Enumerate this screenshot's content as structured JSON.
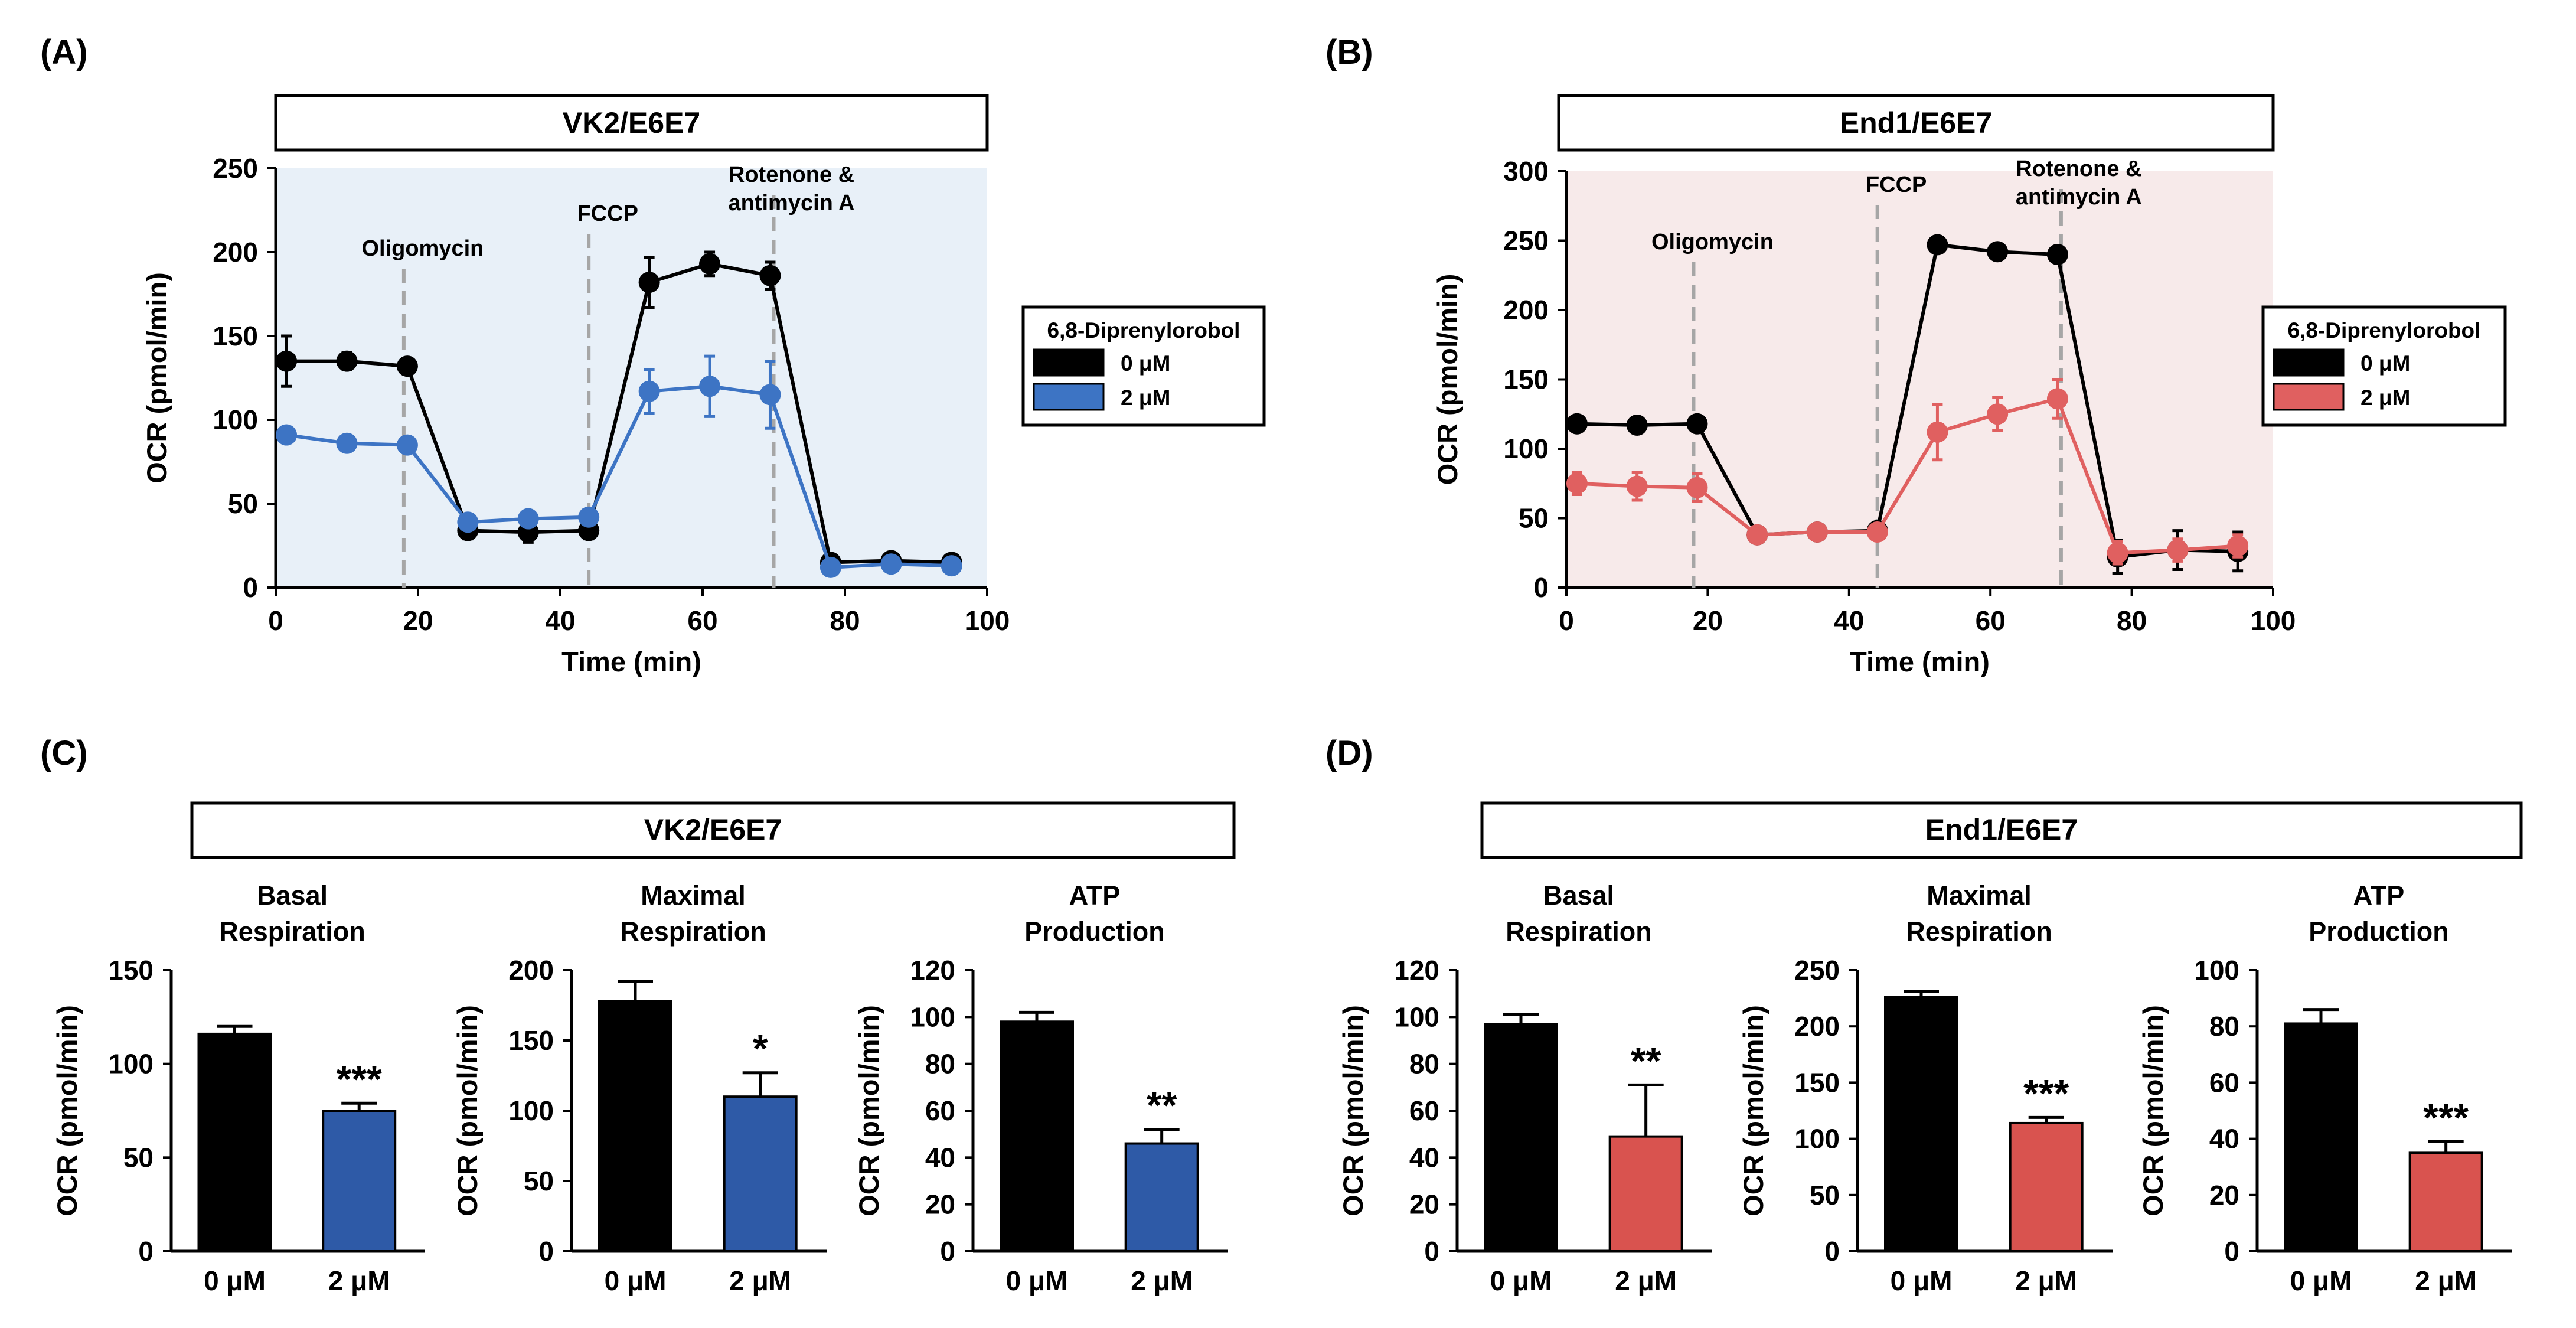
{
  "panels": {
    "A": {
      "label": "(A)"
    },
    "B": {
      "label": "(B)"
    },
    "C": {
      "label": "(C)"
    },
    "D": {
      "label": "(D)"
    }
  },
  "colors": {
    "ctrl": "#000000",
    "blue": "#3d74c4",
    "blueBar": "#2e5aa7",
    "red": "#e06060",
    "redBar": "#d9534f",
    "bgA": "#e8f0f8",
    "bgB": "#f7eaea",
    "vline": "#a6a6a6"
  },
  "chart_data": [
    {
      "id": "A",
      "type": "line",
      "title": "VK2/E6E7",
      "xlabel": "Time (min)",
      "ylabel": "OCR (pmol/min)",
      "xlim": [
        0,
        100
      ],
      "ylim": [
        0,
        250
      ],
      "xticks": [
        0,
        20,
        40,
        60,
        80,
        100
      ],
      "yticks": [
        0,
        50,
        100,
        150,
        200,
        250
      ],
      "legend_title": "6,8-Diprenylorobol",
      "annotations": [
        {
          "text": "Oligomycin",
          "x": 18
        },
        {
          "text": "FCCP",
          "x": 44
        },
        {
          "text": "Rotenone &",
          "text2": "antimycin A",
          "x": 70
        }
      ],
      "x": [
        1.5,
        10,
        18.5,
        27,
        35.5,
        44,
        52.5,
        61,
        69.5,
        78,
        86.5,
        95
      ],
      "series": [
        {
          "name": "0 μM",
          "color": "#000000",
          "values": [
            135,
            135,
            132,
            34,
            33,
            34,
            182,
            193,
            186,
            15,
            16,
            15
          ],
          "errors": [
            15,
            5,
            4,
            5,
            6,
            5,
            15,
            7,
            8,
            3,
            2,
            2
          ]
        },
        {
          "name": "2 μM",
          "color": "#3d74c4",
          "values": [
            91,
            86,
            85,
            39,
            41,
            42,
            117,
            120,
            115,
            12,
            14,
            13
          ],
          "errors": [
            4,
            3,
            3,
            3,
            3,
            3,
            13,
            18,
            20,
            2,
            2,
            2
          ]
        }
      ]
    },
    {
      "id": "B",
      "type": "line",
      "title": "End1/E6E7",
      "xlabel": "Time (min)",
      "ylabel": "OCR (pmol/min)",
      "xlim": [
        0,
        100
      ],
      "ylim": [
        0,
        300
      ],
      "xticks": [
        0,
        20,
        40,
        60,
        80,
        100
      ],
      "yticks": [
        0,
        50,
        100,
        150,
        200,
        250,
        300
      ],
      "legend_title": "6,8-Diprenylorobol",
      "annotations": [
        {
          "text": "Oligomycin",
          "x": 18
        },
        {
          "text": "FCCP",
          "x": 44
        },
        {
          "text": "Rotenone &",
          "text2": "antimycin A",
          "x": 70
        }
      ],
      "x": [
        1.5,
        10,
        18.5,
        27,
        35.5,
        44,
        52.5,
        61,
        69.5,
        78,
        86.5,
        95
      ],
      "series": [
        {
          "name": "0 μM",
          "color": "#000000",
          "values": [
            118,
            117,
            118,
            38,
            40,
            41,
            247,
            242,
            240,
            22,
            27,
            26
          ],
          "errors": [
            4,
            4,
            4,
            3,
            3,
            3,
            5,
            4,
            5,
            12,
            14,
            14
          ]
        },
        {
          "name": "2 μM",
          "color": "#e06060",
          "values": [
            75,
            73,
            72,
            38,
            40,
            40,
            112,
            125,
            136,
            25,
            27,
            30
          ],
          "errors": [
            8,
            10,
            10,
            3,
            3,
            3,
            20,
            12,
            14,
            8,
            8,
            8
          ]
        }
      ]
    },
    {
      "id": "C1",
      "type": "bar",
      "group_title": "VK2/E6E7",
      "title": "Basal",
      "title2": "Respiration",
      "ylabel": "OCR (pmol/min)",
      "ylim": [
        0,
        150
      ],
      "yticks": [
        0,
        50,
        100,
        150
      ],
      "categories": [
        "0 μM",
        "2 μM"
      ],
      "values": [
        116,
        75
      ],
      "errors": [
        4,
        4
      ],
      "sig": "***",
      "color": "#2e5aa7"
    },
    {
      "id": "C2",
      "type": "bar",
      "title": "Maximal",
      "title2": "Respiration",
      "ylabel": "OCR (pmol/min)",
      "ylim": [
        0,
        200
      ],
      "yticks": [
        0,
        50,
        100,
        150,
        200
      ],
      "categories": [
        "0 μM",
        "2 μM"
      ],
      "values": [
        178,
        110
      ],
      "errors": [
        14,
        17
      ],
      "sig": "*",
      "color": "#2e5aa7"
    },
    {
      "id": "C3",
      "type": "bar",
      "title": "ATP",
      "title2": "Production",
      "ylabel": "OCR (pmol/min)",
      "ylim": [
        0,
        120
      ],
      "yticks": [
        0,
        20,
        40,
        60,
        80,
        100,
        120
      ],
      "categories": [
        "0 μM",
        "2 μM"
      ],
      "values": [
        98,
        46
      ],
      "errors": [
        4,
        6
      ],
      "sig": "**",
      "color": "#2e5aa7"
    },
    {
      "id": "D1",
      "type": "bar",
      "group_title": "End1/E6E7",
      "title": "Basal",
      "title2": "Respiration",
      "ylabel": "OCR (pmol/min)",
      "ylim": [
        0,
        120
      ],
      "yticks": [
        0,
        20,
        40,
        60,
        80,
        100,
        120
      ],
      "categories": [
        "0 μM",
        "2 μM"
      ],
      "values": [
        97,
        49
      ],
      "errors": [
        4,
        22
      ],
      "sig": "**",
      "color": "#d9534f"
    },
    {
      "id": "D2",
      "type": "bar",
      "title": "Maximal",
      "title2": "Respiration",
      "ylabel": "OCR (pmol/min)",
      "ylim": [
        0,
        250
      ],
      "yticks": [
        0,
        50,
        100,
        150,
        200,
        250
      ],
      "categories": [
        "0 μM",
        "2 μM"
      ],
      "values": [
        226,
        114
      ],
      "errors": [
        5,
        5
      ],
      "sig": "***",
      "color": "#d9534f"
    },
    {
      "id": "D3",
      "type": "bar",
      "title": "ATP",
      "title2": "Production",
      "ylabel": "OCR (pmol/min)",
      "ylim": [
        0,
        100
      ],
      "yticks": [
        0,
        20,
        40,
        60,
        80,
        100
      ],
      "categories": [
        "0 μM",
        "2 μM"
      ],
      "values": [
        81,
        35
      ],
      "errors": [
        5,
        4
      ],
      "sig": "***",
      "color": "#d9534f"
    }
  ]
}
